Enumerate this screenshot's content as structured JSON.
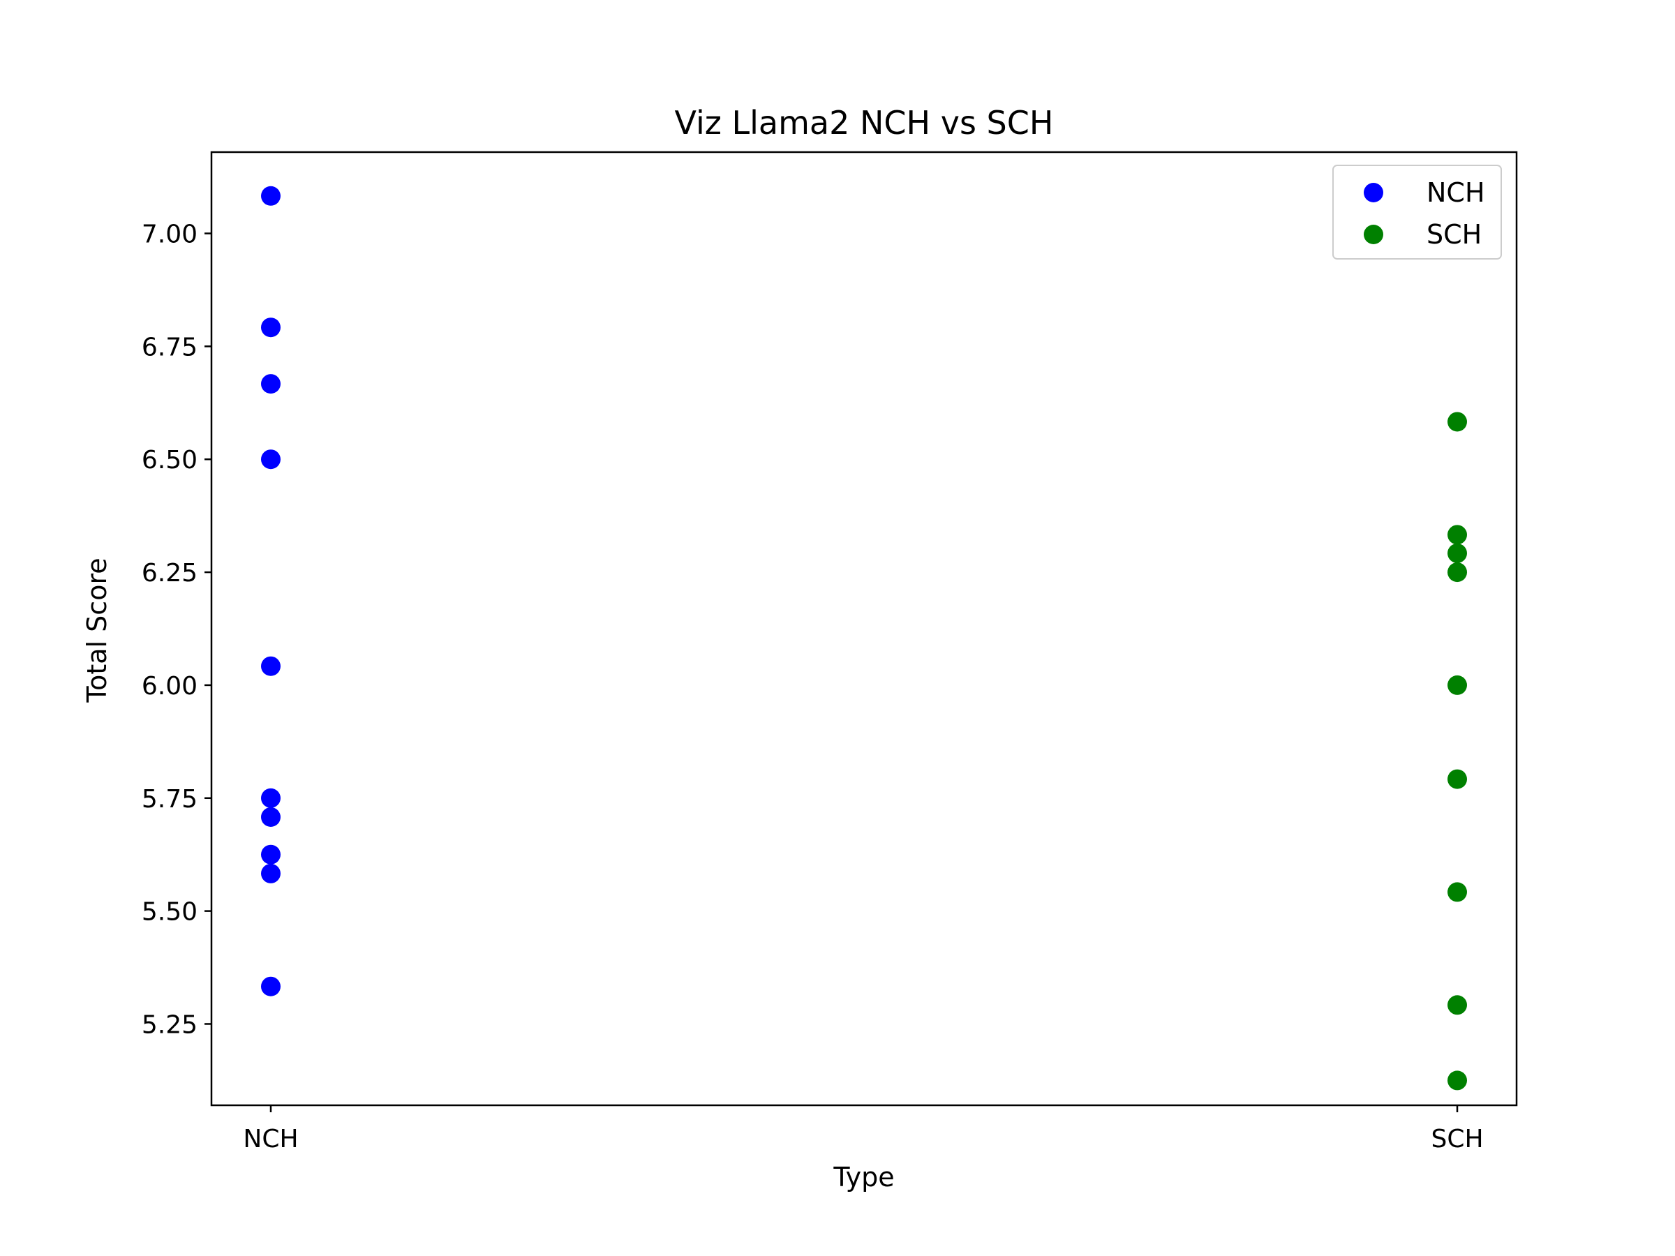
{
  "chart_data": {
    "type": "scatter",
    "title": "Viz Llama2 NCH vs SCH",
    "xlabel": "Type",
    "ylabel": "Total Score",
    "categories": [
      "NCH",
      "SCH"
    ],
    "ylim": [
      5.07,
      7.18
    ],
    "yticks": [
      "5.25",
      "5.50",
      "5.75",
      "6.00",
      "6.25",
      "6.50",
      "6.75",
      "7.00"
    ],
    "grid": false,
    "legend_position": "top-right",
    "series": [
      {
        "name": "NCH",
        "color": "#0000ff",
        "category": "NCH",
        "values": [
          7.083,
          6.792,
          6.667,
          6.5,
          6.042,
          5.75,
          5.708,
          5.625,
          5.583,
          5.333
        ]
      },
      {
        "name": "SCH",
        "color": "#008000",
        "category": "SCH",
        "values": [
          6.583,
          6.333,
          6.292,
          6.25,
          6.0,
          5.792,
          5.542,
          5.292,
          5.125
        ]
      }
    ]
  }
}
